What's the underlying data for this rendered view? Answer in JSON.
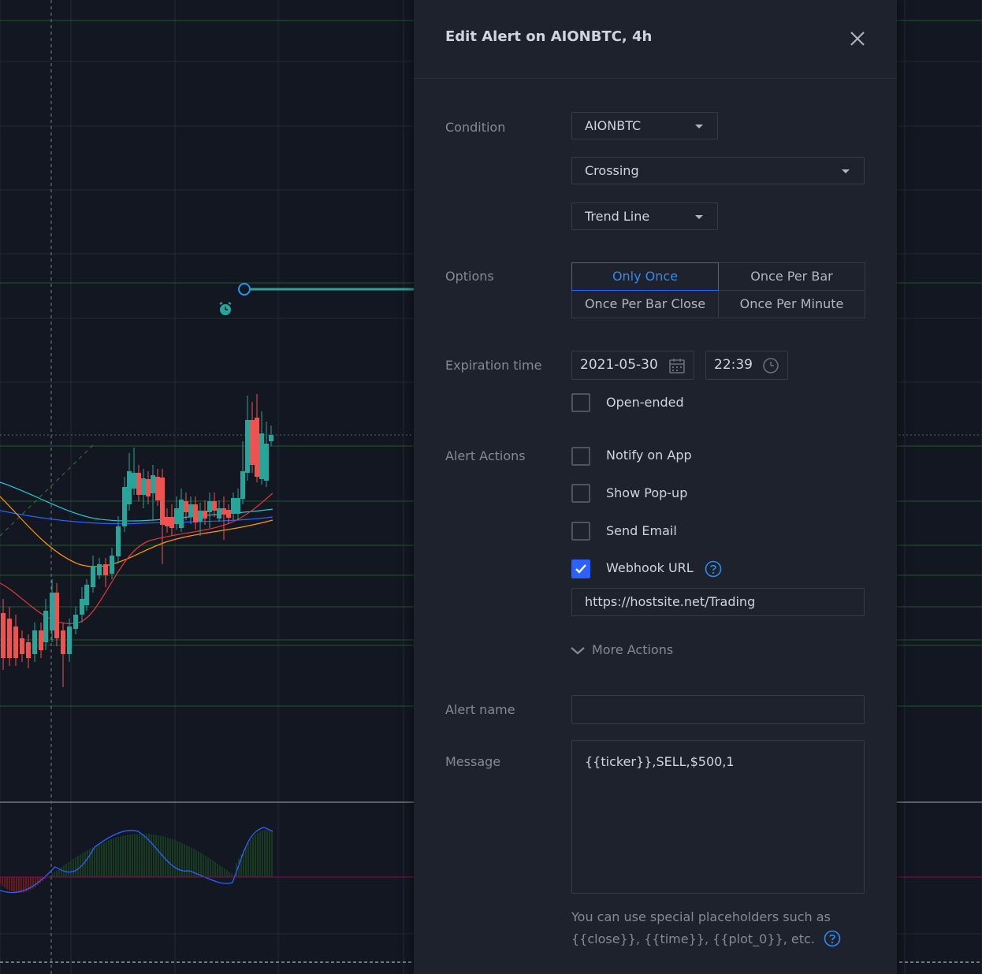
{
  "dialog": {
    "title": "Edit Alert on AIONBTC, 4h",
    "condition": {
      "label": "Condition",
      "symbol": "AIONBTC",
      "operator": "Crossing",
      "target": "Trend Line"
    },
    "options": {
      "label": "Options",
      "items": [
        "Only Once",
        "Once Per Bar",
        "Once Per Bar Close",
        "Once Per Minute"
      ],
      "selected": "Only Once"
    },
    "expiration": {
      "label": "Expiration time",
      "date": "2021-05-30",
      "time": "22:39",
      "open_ended_label": "Open-ended",
      "open_ended_checked": false
    },
    "alert_actions": {
      "label": "Alert Actions",
      "items": [
        {
          "label": "Notify on App",
          "checked": false
        },
        {
          "label": "Show Pop-up",
          "checked": false
        },
        {
          "label": "Send Email",
          "checked": false
        },
        {
          "label": "Webhook URL",
          "checked": true
        }
      ],
      "webhook_url": "https://hostsite.net/Trading",
      "more_actions": "More Actions"
    },
    "alert_name": {
      "label": "Alert name",
      "value": ""
    },
    "message": {
      "label": "Message",
      "value": "{{ticker}},SELL,$500,1"
    },
    "hint": {
      "line1": "You can use special placeholders such as",
      "line2": "{{close}}, {{time}}, {{plot_0}}, etc."
    }
  },
  "colors": {
    "background": "#131722",
    "panel": "#1e222d",
    "accent": "#2962ff",
    "candle_up": "#26a69a",
    "candle_down": "#ef5350",
    "gridline": "#2a2e39",
    "level_line": "#1b5e20"
  },
  "icons": [
    "close-icon",
    "calendar-icon",
    "clock-icon",
    "checkmark-icon",
    "help-icon",
    "chevron-down-icon",
    "alarm-clock-icon"
  ]
}
